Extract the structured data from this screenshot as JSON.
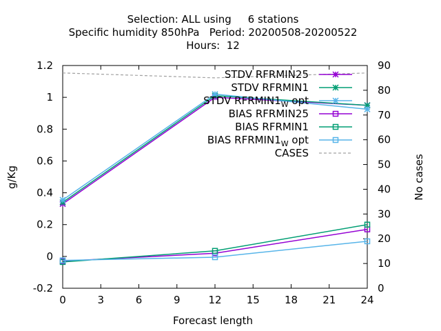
{
  "chart_data": {
    "type": "line",
    "title_lines": [
      "Selection: ALL using     6 stations",
      "Specific humidity 850hPa   Period: 20200508-20200522",
      "Hours:  12"
    ],
    "xlabel": "Forecast length",
    "ylabel": "g/Kg",
    "y2label": "No cases",
    "xlim": [
      0,
      24
    ],
    "ylim": [
      -0.2,
      1.2
    ],
    "y2lim": [
      0,
      90
    ],
    "xticks": [
      0,
      3,
      6,
      9,
      12,
      15,
      18,
      21,
      24
    ],
    "yticks": [
      -0.2,
      0,
      0.2,
      0.4,
      0.6,
      0.8,
      1,
      1.2
    ],
    "ytick_labels": [
      "-0.2",
      "0",
      "0.2",
      "0.4",
      "0.6",
      "0.8",
      "1",
      "1.2"
    ],
    "y2ticks": [
      0,
      10,
      20,
      30,
      40,
      50,
      60,
      70,
      80,
      90
    ],
    "grid": false,
    "legend_position": "top-right",
    "series": [
      {
        "name": "STDV RFRMIN25",
        "axis": "y",
        "marker": "star",
        "style": "solid",
        "color": "#9400d3",
        "x": [
          0,
          12,
          24
        ],
        "y": [
          0.33,
          1.0,
          0.95
        ]
      },
      {
        "name": "STDV RFRMIN1",
        "axis": "y",
        "marker": "star",
        "style": "solid",
        "color": "#009e73",
        "x": [
          0,
          12,
          24
        ],
        "y": [
          0.34,
          1.01,
          0.95
        ]
      },
      {
        "name": "STDV RFRMIN1",
        "name_subscript": "W",
        "name_suffix": " opt",
        "axis": "y",
        "marker": "star",
        "style": "solid",
        "color": "#56b4e9",
        "x": [
          0,
          12,
          24
        ],
        "y": [
          0.355,
          1.02,
          0.925
        ]
      },
      {
        "name": "BIAS RFRMIN25",
        "axis": "y",
        "marker": "square",
        "style": "solid",
        "color": "#9400d3",
        "x": [
          0,
          12,
          24
        ],
        "y": [
          -0.03,
          0.02,
          0.17
        ]
      },
      {
        "name": "BIAS RFRMIN1",
        "axis": "y",
        "marker": "square",
        "style": "solid",
        "color": "#009e73",
        "x": [
          0,
          12,
          24
        ],
        "y": [
          -0.035,
          0.035,
          0.2
        ]
      },
      {
        "name": "BIAS RFRMIN1",
        "name_subscript": "W",
        "name_suffix": " opt",
        "axis": "y",
        "marker": "square",
        "style": "solid",
        "color": "#56b4e9",
        "x": [
          0,
          12,
          24
        ],
        "y": [
          -0.025,
          -0.005,
          0.095
        ]
      },
      {
        "name": "CASES",
        "axis": "y2",
        "marker": "none",
        "style": "dashed",
        "color": "#a0a0a0",
        "x": [
          0,
          12,
          24
        ],
        "y": [
          87,
          85,
          87
        ]
      }
    ]
  }
}
